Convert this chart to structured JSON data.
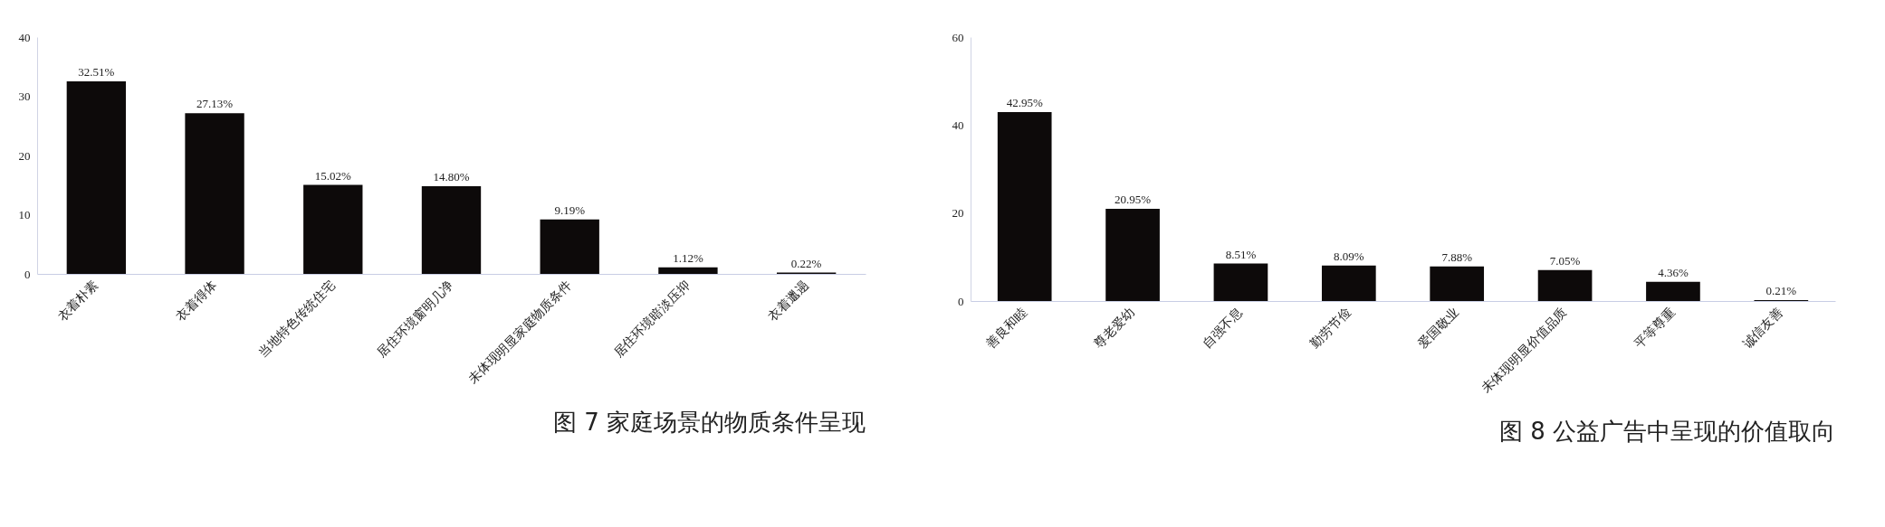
{
  "chart_data": [
    {
      "type": "bar",
      "title": "图 7 家庭场景的物质条件呈现",
      "categories": [
        "衣着朴素",
        "衣着得体",
        "当地特色传统住宅",
        "居住环境窗明几净",
        "未体现明显家庭物质条件",
        "居住环境暗淡压抑",
        "衣着邋遢"
      ],
      "values": [
        32.51,
        27.13,
        15.02,
        14.8,
        9.19,
        1.12,
        0.22
      ],
      "value_labels": [
        "32.51%",
        "27.13%",
        "15.02%",
        "14.80%",
        "9.19%",
        "1.12%",
        "0.22%"
      ],
      "color": "#0d0a0a",
      "ylim": [
        0,
        40
      ],
      "yticks": [
        0,
        10,
        20,
        30,
        40
      ],
      "grid": false
    },
    {
      "type": "bar",
      "title": "图 8 公益广告中呈现的价值取向",
      "categories": [
        "善良和睦",
        "尊老爱幼",
        "自强不息",
        "勤劳节俭",
        "爱国敬业",
        "未体现明显价值品质",
        "平等尊重",
        "诚信友善"
      ],
      "values": [
        42.95,
        20.95,
        8.51,
        8.09,
        7.88,
        7.05,
        4.36,
        0.21
      ],
      "value_labels": [
        "42.95%",
        "20.95%",
        "8.51%",
        "8.09%",
        "7.88%",
        "7.05%",
        "4.36%",
        "0.21%"
      ],
      "color": "#0d0a0a",
      "ylim": [
        0,
        60
      ],
      "yticks": [
        0,
        20,
        40,
        60
      ],
      "grid": false
    }
  ]
}
